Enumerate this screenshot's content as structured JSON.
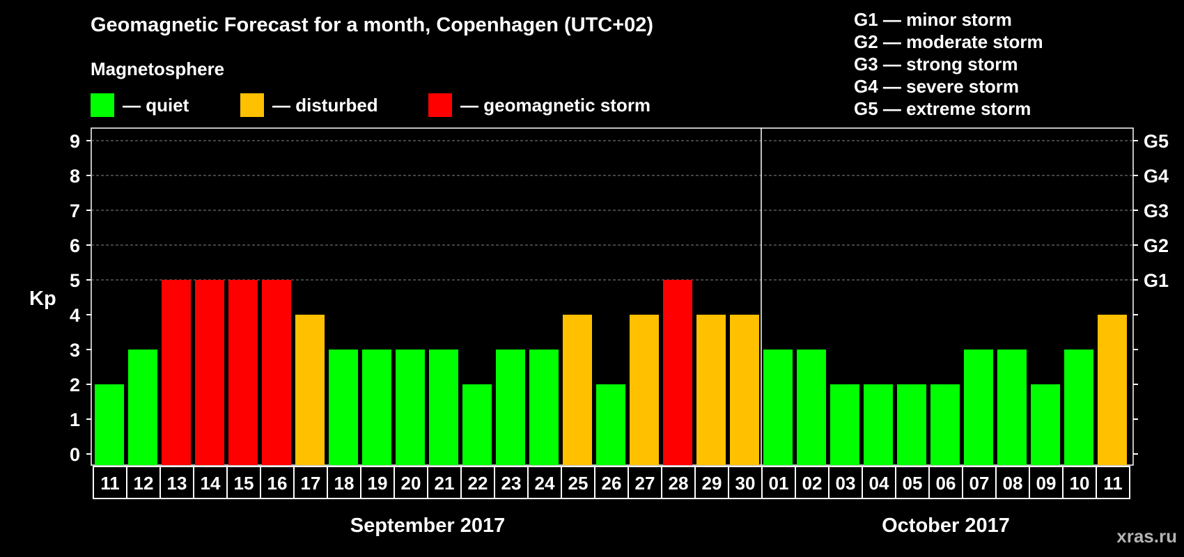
{
  "title": "Geomagnetic Forecast for a month, Copenhagen (UTC+02)",
  "subtitle": "Magnetosphere",
  "legend": [
    {
      "label": "— quiet",
      "color": "#00ff00"
    },
    {
      "label": "— disturbed",
      "color": "#ffc000"
    },
    {
      "label": "— geomagnetic storm",
      "color": "#ff0000"
    }
  ],
  "storm_levels": [
    "G1 — minor storm",
    "G2 — moderate storm",
    "G3 — strong storm",
    "G4 — severe storm",
    "G5 — extreme storm"
  ],
  "watermark": "xras.ru",
  "colors": {
    "quiet": "#00ff00",
    "disturbed": "#ffc000",
    "storm": "#ff0000",
    "background": "#000000",
    "grid": "#888888"
  },
  "chart_data": {
    "type": "bar",
    "title": "Geomagnetic Forecast for a month, Copenhagen (UTC+02)",
    "ylabel": "Kp",
    "ylim": [
      0,
      9
    ],
    "yticks": [
      0,
      1,
      2,
      3,
      4,
      5,
      6,
      7,
      8,
      9
    ],
    "right_ticks": [
      {
        "value": 5,
        "label": "G1"
      },
      {
        "value": 6,
        "label": "G2"
      },
      {
        "value": 7,
        "label": "G3"
      },
      {
        "value": 8,
        "label": "G4"
      },
      {
        "value": 9,
        "label": "G5"
      }
    ],
    "grid": "horizontal dashed at 5-9",
    "categories": [
      "11",
      "12",
      "13",
      "14",
      "15",
      "16",
      "17",
      "18",
      "19",
      "20",
      "21",
      "22",
      "23",
      "24",
      "25",
      "26",
      "27",
      "28",
      "29",
      "30",
      "01",
      "02",
      "03",
      "04",
      "05",
      "06",
      "07",
      "08",
      "09",
      "10",
      "11"
    ],
    "values": [
      2,
      3,
      5,
      5,
      5,
      5,
      4,
      3,
      3,
      3,
      3,
      2,
      3,
      3,
      4,
      2,
      4,
      5,
      4,
      4,
      3,
      3,
      2,
      2,
      2,
      2,
      3,
      3,
      2,
      3,
      4
    ],
    "month_groups": [
      {
        "label": "September 2017",
        "start": 0,
        "end": 19
      },
      {
        "label": "October 2017",
        "start": 20,
        "end": 30
      }
    ]
  }
}
